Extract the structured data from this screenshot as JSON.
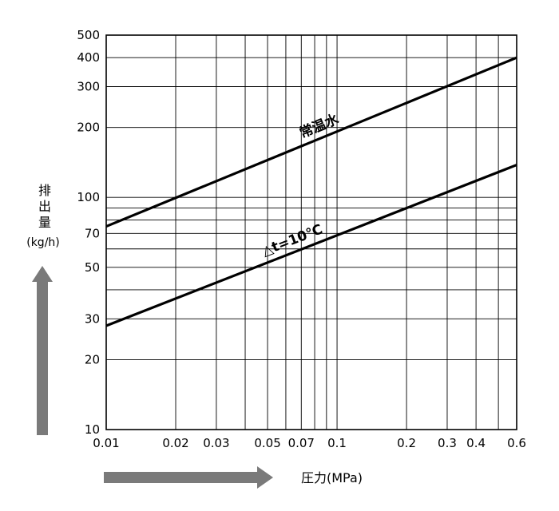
{
  "chart_data": {
    "type": "line",
    "title": "",
    "xlabel": "圧力(MPa)",
    "ylabel_lines": [
      "排",
      "出",
      "量",
      "(kg/h)"
    ],
    "x_scale": "log",
    "y_scale": "log",
    "xlim": [
      0.01,
      0.6
    ],
    "ylim": [
      10,
      500
    ],
    "grid": true,
    "legend": "none",
    "x_ticks": [
      0.01,
      0.02,
      0.03,
      0.05,
      0.07,
      0.1,
      0.2,
      0.3,
      0.4,
      0.6
    ],
    "x_tick_labels": [
      "0.01",
      "0.02",
      "0.03",
      "0.05",
      "0.07",
      "0.1",
      "0.2",
      "0.3",
      "0.4",
      "0.6"
    ],
    "y_ticks": [
      10,
      20,
      30,
      50,
      70,
      100,
      200,
      300,
      400,
      500
    ],
    "y_tick_labels": [
      "10",
      "20",
      "30",
      "50",
      "70",
      "100",
      "200",
      "300",
      "400",
      "500"
    ],
    "x_gridlines": [
      0.01,
      0.02,
      0.03,
      0.04,
      0.05,
      0.06,
      0.07,
      0.08,
      0.09,
      0.1,
      0.2,
      0.3,
      0.4,
      0.5,
      0.6
    ],
    "y_gridlines": [
      10,
      20,
      30,
      40,
      50,
      60,
      70,
      80,
      90,
      100,
      200,
      300,
      400,
      500
    ],
    "series": [
      {
        "name": "常温水",
        "x": [
          0.01,
          0.6
        ],
        "y": [
          75,
          400
        ]
      },
      {
        "name": "△t=10℃",
        "x": [
          0.01,
          0.6
        ],
        "y": [
          28,
          138
        ]
      }
    ],
    "colors": {
      "line": "#000000",
      "grid": "#000000",
      "arrow": "#7a7a7a"
    }
  }
}
